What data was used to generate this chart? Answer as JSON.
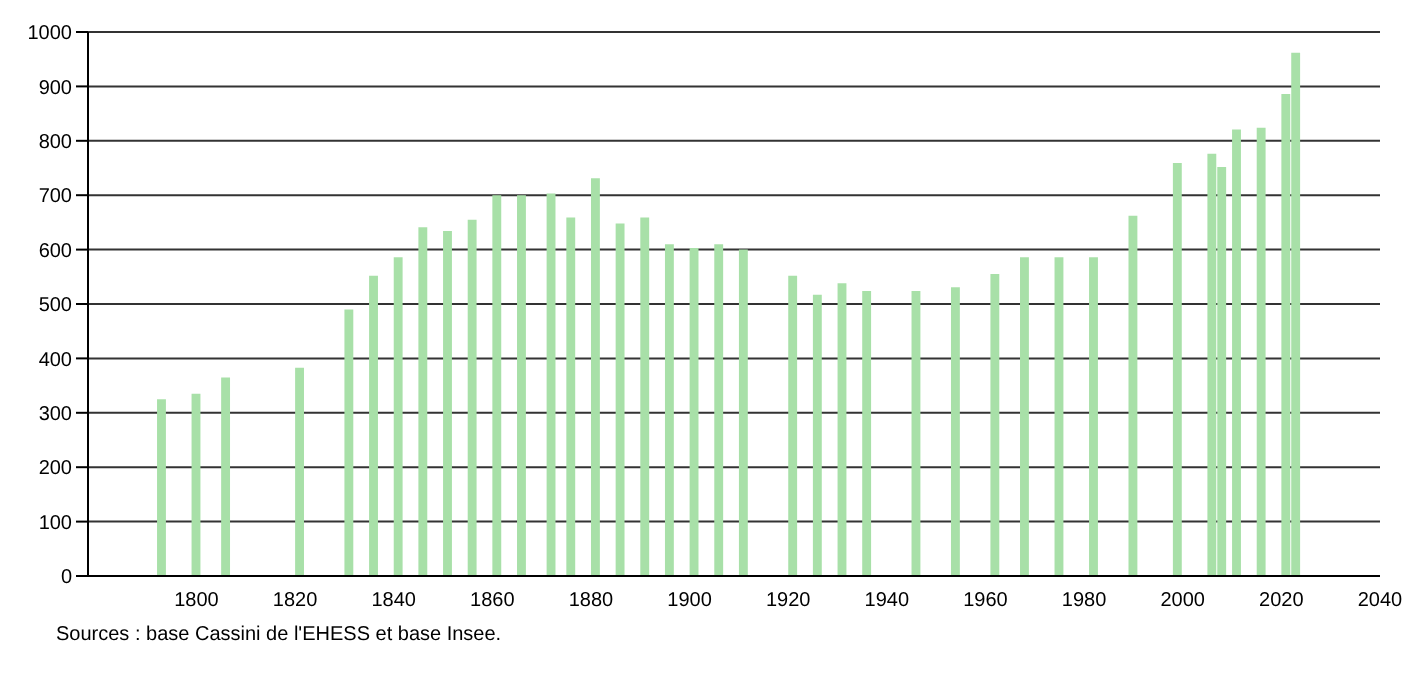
{
  "chart_data": {
    "type": "bar",
    "x": [
      1793,
      1800,
      1806,
      1821,
      1831,
      1836,
      1841,
      1846,
      1851,
      1856,
      1861,
      1866,
      1872,
      1876,
      1881,
      1886,
      1891,
      1896,
      1901,
      1906,
      1911,
      1921,
      1926,
      1931,
      1936,
      1946,
      1954,
      1962,
      1968,
      1975,
      1982,
      1990,
      1999,
      2006,
      2008,
      2011,
      2016,
      2021,
      2023
    ],
    "values": [
      325,
      335,
      365,
      383,
      490,
      552,
      586,
      641,
      634,
      655,
      700,
      700,
      703,
      659,
      731,
      648,
      659,
      610,
      603,
      610,
      600,
      552,
      517,
      538,
      524,
      524,
      531,
      555,
      586,
      586,
      586,
      662,
      759,
      776,
      752,
      821,
      824,
      886,
      962
    ],
    "color": "#a8e0a8",
    "xlim": [
      1778,
      2040
    ],
    "xticks": [
      1800,
      1820,
      1840,
      1860,
      1880,
      1900,
      1920,
      1940,
      1960,
      1980,
      2000,
      2020,
      2040
    ],
    "ylim": [
      0,
      1000
    ],
    "yticks": [
      0,
      100,
      200,
      300,
      400,
      500,
      600,
      700,
      800,
      900,
      1000
    ],
    "grid": "y",
    "annotations": [
      "Sources : base Cassini de l'EHESS et base Insee."
    ]
  }
}
